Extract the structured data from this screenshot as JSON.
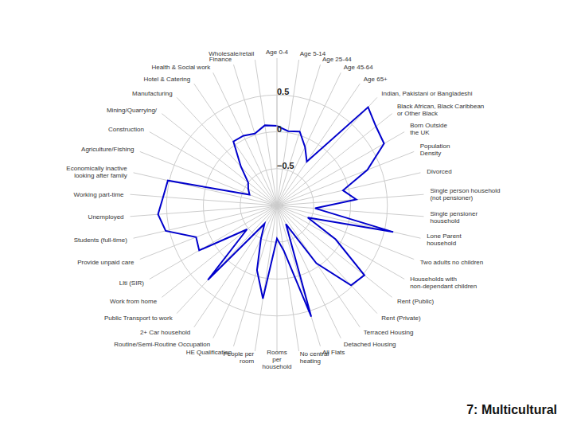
{
  "chart_data": {
    "type": "radar",
    "title": "7: Multicultural",
    "categories": [
      "Age 0-4",
      "Age 5-14",
      "Age 25-44",
      "Age 45-64",
      "Age 65+",
      "Indian, Pakistani or Bangladeshi",
      "Black African, Black Caribbean\nor Other Black",
      "Born Outside\nthe UK",
      "Population\nDensity",
      "Divorced",
      "Single person household\n(not pensioner)",
      "Single pensioner\nhousehold",
      "Lone Parent\nhousehold",
      "Two adults no children",
      "Households with\nnon-dependant children",
      "Rent (Public)",
      "Rent (Private)",
      "Terraced Housing",
      "Detached Housing",
      "All Flats",
      "No central\nheating",
      "Rooms\nper\nhousehold",
      "People per\nroom",
      "HE Qualification",
      "Routine/Semi-Routine Occupation",
      "2+ Car household",
      "Public Transport to work",
      "Work from home",
      "Llti (SIR)",
      "Provide unpaid care",
      "Students (full-time)",
      "Unemployed",
      "Working part-time",
      "Economically inactive\nlooking after family",
      "Agriculture/Fishing",
      "Construction",
      "Mining/Quarrying/",
      "Manufacturing",
      "Hotel & Catering",
      "Health & Social work",
      "Finance",
      "Wholesale/retail"
    ],
    "values": [
      0.08,
      0.02,
      0.05,
      -0.12,
      -0.28,
      0.82,
      0.72,
      0.68,
      0.32,
      -0.08,
      0.08,
      -0.48,
      0.62,
      -0.55,
      -0.08,
      0.52,
      0.48,
      -0.05,
      -0.72,
      0.58,
      -0.38,
      -0.55,
      0.28,
      -0.08,
      -0.5,
      -0.7,
      0.38,
      -0.48,
      0.22,
      0.18,
      0.55,
      0.62,
      0.55,
      0.52,
      -0.6,
      -0.55,
      -0.5,
      -0.28,
      0.05,
      0.05,
      0.02,
      0.1
    ],
    "color": "#0000cc",
    "ylim": [
      -1.0,
      1.0
    ],
    "yticks": [
      {
        "value": -0.5,
        "label": "−0.5"
      },
      0,
      0.5
    ],
    "grid": true
  }
}
